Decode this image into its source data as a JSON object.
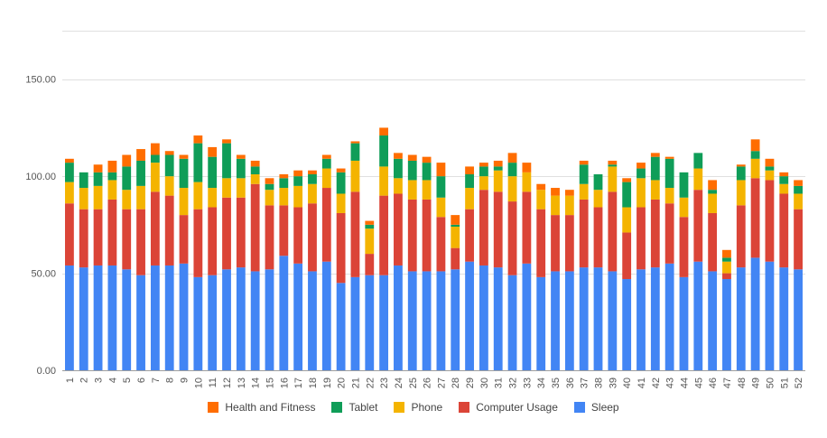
{
  "chart_data": {
    "type": "bar",
    "stacked": true,
    "title": "",
    "xlabel": "",
    "ylabel": "",
    "ylim": [
      0,
      175
    ],
    "y_ticks": [
      {
        "value": 0,
        "label": "0.00"
      },
      {
        "value": 50,
        "label": "50.00"
      },
      {
        "value": 100,
        "label": "100.00"
      },
      {
        "value": 150,
        "label": "150.00"
      }
    ],
    "grid": true,
    "legend_position": "bottom",
    "categories": [
      "1",
      "2",
      "3",
      "4",
      "5",
      "6",
      "7",
      "8",
      "9",
      "10",
      "11",
      "12",
      "13",
      "14",
      "15",
      "16",
      "17",
      "18",
      "19",
      "20",
      "21",
      "22",
      "23",
      "24",
      "25",
      "26",
      "27",
      "28",
      "29",
      "30",
      "31",
      "32",
      "33",
      "34",
      "35",
      "36",
      "37",
      "38",
      "39",
      "40",
      "41",
      "42",
      "43",
      "44",
      "45",
      "46",
      "47",
      "48",
      "49",
      "50",
      "51",
      "52"
    ],
    "series": [
      {
        "name": "Sleep",
        "color": "#4285f4",
        "values": [
          54,
          53,
          54,
          54,
          52,
          49,
          54,
          54,
          55,
          48,
          49,
          52,
          53,
          51,
          52,
          59,
          55,
          51,
          56,
          45,
          48,
          49,
          49,
          54,
          51,
          51,
          51,
          52,
          56,
          54,
          53,
          49,
          55,
          48,
          51,
          51,
          53,
          53,
          51,
          47,
          52,
          53,
          55,
          48,
          56,
          51,
          47,
          53,
          58,
          56,
          53,
          52
        ]
      },
      {
        "name": "Computer Usage",
        "color": "#db4437",
        "values": [
          32,
          30,
          29,
          34,
          31,
          34,
          38,
          36,
          25,
          35,
          35,
          37,
          36,
          45,
          33,
          26,
          29,
          35,
          38,
          36,
          44,
          11,
          41,
          37,
          37,
          37,
          28,
          11,
          27,
          39,
          39,
          38,
          37,
          35,
          29,
          29,
          35,
          31,
          41,
          24,
          32,
          35,
          31,
          31,
          37,
          30,
          3,
          32,
          41,
          42,
          38,
          31
        ]
      },
      {
        "name": "Phone",
        "color": "#f4b400",
        "values": [
          11,
          11,
          12,
          10,
          10,
          12,
          15,
          10,
          14,
          14,
          10,
          10,
          10,
          5,
          8,
          9,
          11,
          10,
          10,
          10,
          16,
          13,
          15,
          8,
          10,
          10,
          10,
          11,
          11,
          7,
          11,
          13,
          10,
          10,
          10,
          10,
          8,
          9,
          13,
          13,
          15,
          10,
          8,
          10,
          11,
          10,
          6,
          13,
          10,
          5,
          5,
          8
        ]
      },
      {
        "name": "Tablet",
        "color": "#0f9d58",
        "values": [
          10,
          8,
          7,
          4,
          12,
          13,
          4,
          11,
          15,
          20,
          16,
          18,
          10,
          4,
          3,
          5,
          5,
          5,
          5,
          11,
          9,
          2,
          16,
          10,
          10,
          9,
          11,
          1,
          7,
          5,
          2,
          7,
          0,
          0,
          0,
          0,
          10,
          8,
          1,
          13,
          5,
          12,
          15,
          13,
          8,
          2,
          2,
          7,
          4,
          2,
          4,
          4
        ]
      },
      {
        "name": "Health and Fitness",
        "color": "#ff6d00",
        "values": [
          2,
          0,
          4,
          6,
          6,
          6,
          6,
          2,
          2,
          4,
          5,
          2,
          2,
          3,
          3,
          2,
          3,
          2,
          2,
          2,
          1,
          2,
          4,
          3,
          3,
          3,
          7,
          5,
          4,
          2,
          3,
          5,
          5,
          3,
          4,
          3,
          2,
          0,
          2,
          2,
          3,
          2,
          1,
          0,
          0,
          5,
          4,
          1,
          6,
          4,
          2,
          3
        ]
      }
    ]
  },
  "legend": [
    {
      "name": "Health and Fitness",
      "color": "#ff6d00"
    },
    {
      "name": "Tablet",
      "color": "#0f9d58"
    },
    {
      "name": "Phone",
      "color": "#f4b400"
    },
    {
      "name": "Computer Usage",
      "color": "#db4437"
    },
    {
      "name": "Sleep",
      "color": "#4285f4"
    }
  ]
}
